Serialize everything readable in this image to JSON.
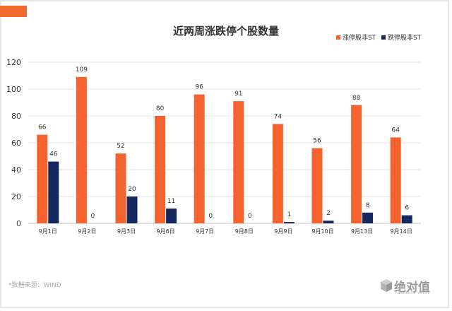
{
  "chart_data": {
    "type": "bar",
    "title": "近两周涨跌停个股数量",
    "categories": [
      "9月1日",
      "9月2日",
      "9月3日",
      "9月6日",
      "9月7日",
      "9月8日",
      "9月9日",
      "9月10日",
      "9月13日",
      "9月14日"
    ],
    "series": [
      {
        "name": "涨停股非ST",
        "color": "#f4622f",
        "values": [
          66,
          109,
          52,
          80,
          96,
          91,
          74,
          56,
          88,
          64
        ]
      },
      {
        "name": "跌停股非ST",
        "color": "#14285e",
        "values": [
          46,
          0,
          20,
          11,
          0,
          0,
          1,
          2,
          8,
          6
        ]
      }
    ],
    "ylim": [
      0,
      120
    ],
    "yticks": [
      0,
      20,
      40,
      60,
      80,
      100,
      120
    ],
    "grid": true,
    "legend_position": "top-right"
  },
  "source_note": "*数据来源：WIND",
  "logo": {
    "name": "绝对值",
    "subtitle": "ABSOLUTE VALUE",
    "icon": "cube-icon"
  },
  "colors": {
    "accent": "#f26a30"
  }
}
